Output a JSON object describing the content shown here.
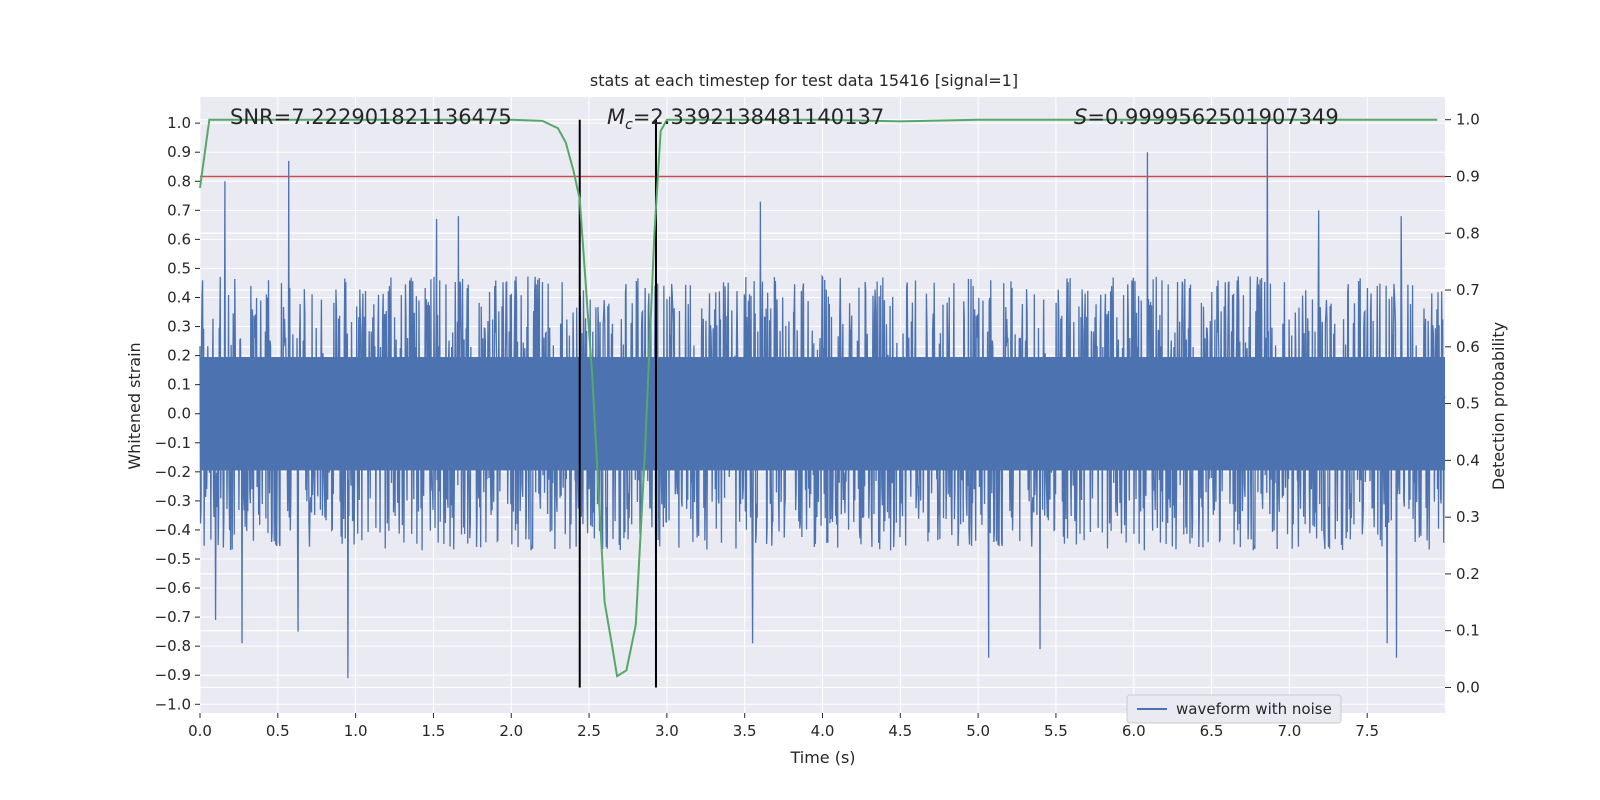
{
  "chart_data": {
    "type": "line",
    "title": "stats at each timestep for test data 15416 [signal=1]",
    "xlabel": "Time (s)",
    "ylabel": "Whitened strain",
    "y2label": "Detection probability",
    "xlim": [
      0.0,
      8.0
    ],
    "ylim": [
      -1.03,
      1.09
    ],
    "y2lim": [
      -0.045,
      1.04
    ],
    "x_ticks": [
      0.0,
      0.5,
      1.0,
      1.5,
      2.0,
      2.5,
      3.0,
      3.5,
      4.0,
      4.5,
      5.0,
      5.5,
      6.0,
      6.5,
      7.0,
      7.5
    ],
    "x_tick_labels": [
      "0.0",
      "0.5",
      "1.0",
      "1.5",
      "2.0",
      "2.5",
      "3.0",
      "3.5",
      "4.0",
      "4.5",
      "5.0",
      "5.5",
      "6.0",
      "6.5",
      "7.0",
      "7.5"
    ],
    "y_ticks": [
      -1.0,
      -0.9,
      -0.8,
      -0.7,
      -0.6,
      -0.5,
      -0.4,
      -0.3,
      -0.2,
      -0.1,
      0.0,
      0.1,
      0.2,
      0.3,
      0.4,
      0.5,
      0.6,
      0.7,
      0.8,
      0.9,
      1.0
    ],
    "y_tick_labels": [
      "−1.0",
      "−0.9",
      "−0.8",
      "−0.7",
      "−0.6",
      "−0.5",
      "−0.4",
      "−0.3",
      "−0.2",
      "−0.1",
      "0.0",
      "0.1",
      "0.2",
      "0.3",
      "0.4",
      "0.5",
      "0.6",
      "0.7",
      "0.8",
      "0.9",
      "1.0"
    ],
    "y2_ticks": [
      0.0,
      0.1,
      0.2,
      0.3,
      0.4,
      0.5,
      0.6,
      0.7,
      0.8,
      0.9,
      1.0
    ],
    "y2_tick_labels": [
      "0.0",
      "0.1",
      "0.2",
      "0.3",
      "0.4",
      "0.5",
      "0.6",
      "0.7",
      "0.8",
      "0.9",
      "1.0"
    ],
    "grid": true,
    "legend": {
      "entries": [
        "waveform with noise"
      ],
      "placement": "lower-right"
    },
    "annotations": {
      "snr": "SNR=7.222901821136475",
      "mc_symbol": "M",
      "mc_sub": "c",
      "mc_value": "=2.3392138481140137",
      "s_symbol": "S",
      "s_value": "=0.9999562501907349"
    },
    "waveform": {
      "name": "waveform with noise",
      "color": "#4c72b0",
      "sample_duration": 8.0,
      "approx_band": 0.2,
      "typical_extreme": 0.45,
      "notable_peaks": [
        {
          "x": 0.16,
          "y": 0.8
        },
        {
          "x": 0.57,
          "y": 0.87
        },
        {
          "x": 1.52,
          "y": 0.67
        },
        {
          "x": 1.66,
          "y": 0.68
        },
        {
          "x": 3.6,
          "y": 0.73
        },
        {
          "x": 6.09,
          "y": 0.9
        },
        {
          "x": 6.86,
          "y": 1.0
        },
        {
          "x": 7.19,
          "y": 0.7
        },
        {
          "x": 7.72,
          "y": 0.68
        }
      ],
      "notable_troughs": [
        {
          "x": 0.1,
          "y": -0.71
        },
        {
          "x": 0.27,
          "y": -0.79
        },
        {
          "x": 0.63,
          "y": -0.75
        },
        {
          "x": 0.95,
          "y": -0.91
        },
        {
          "x": 3.55,
          "y": -0.79
        },
        {
          "x": 5.07,
          "y": -0.84
        },
        {
          "x": 5.4,
          "y": -0.81
        },
        {
          "x": 7.69,
          "y": -0.84
        },
        {
          "x": 7.63,
          "y": -0.79
        }
      ]
    },
    "probability": {
      "color": "#55a868",
      "x": [
        0.0,
        0.06,
        0.25,
        1.0,
        2.0,
        2.2,
        2.3,
        2.35,
        2.4,
        2.44,
        2.52,
        2.6,
        2.65,
        2.68,
        2.74,
        2.8,
        2.86,
        2.92,
        2.96,
        3.0,
        3.06,
        3.15,
        4.0,
        4.5,
        5.0,
        6.0,
        7.0,
        7.95
      ],
      "y": [
        0.88,
        1.0,
        1.0,
        1.0,
        1.0,
        0.998,
        0.985,
        0.96,
        0.91,
        0.86,
        0.55,
        0.15,
        0.07,
        0.02,
        0.03,
        0.11,
        0.42,
        0.8,
        0.98,
        1.0,
        1.0,
        1.0,
        1.0,
        0.997,
        1.0,
        1.0,
        1.0,
        1.0
      ]
    },
    "threshold": {
      "value": 0.9,
      "color": "#c44e52"
    },
    "event_window": {
      "start": 2.44,
      "end": 2.93,
      "color": "#000000"
    }
  }
}
